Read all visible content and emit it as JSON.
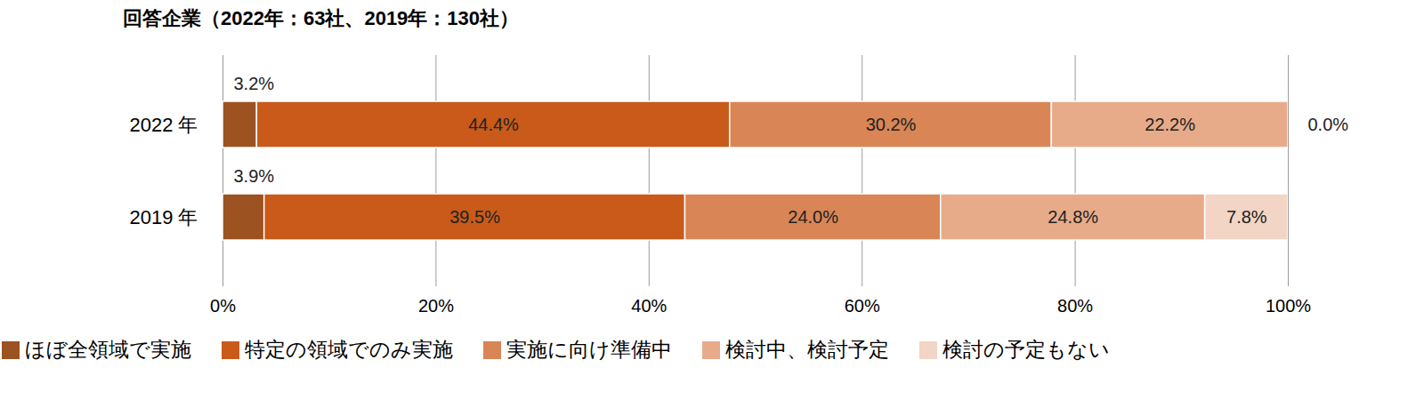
{
  "chart_data": {
    "type": "bar",
    "title": "回答企業（2022年：63社、2019年：130社）",
    "orientation": "horizontal",
    "stacked": true,
    "data_labels": true,
    "grid": true,
    "legend": "bottom",
    "categories": [
      "2022 年",
      "2019 年"
    ],
    "xlim": [
      0,
      100
    ],
    "xticks": [
      {
        "value": 0,
        "label": "0%"
      },
      {
        "value": 20,
        "label": "20%"
      },
      {
        "value": 40,
        "label": "40%"
      },
      {
        "value": 60,
        "label": "60%"
      },
      {
        "value": 80,
        "label": "80%"
      },
      {
        "value": 100,
        "label": "100%"
      }
    ],
    "series": [
      {
        "name": "ほぼ全領域で実施",
        "color": "#9c5221",
        "values": [
          3.2,
          3.9
        ],
        "value_labels": [
          "3.2%",
          "3.9%"
        ]
      },
      {
        "name": "特定の領域でのみ実施",
        "color": "#c95a1a",
        "values": [
          44.4,
          39.5
        ],
        "value_labels": [
          "44.4%",
          "39.5%"
        ]
      },
      {
        "name": "実施に向け準備中",
        "color": "#d98556",
        "values": [
          30.2,
          24.0
        ],
        "value_labels": [
          "30.2%",
          "24.0%"
        ]
      },
      {
        "name": "検討中、検討予定",
        "color": "#e8ab8a",
        "values": [
          22.2,
          24.8
        ],
        "value_labels": [
          "22.2%",
          "24.8%"
        ]
      },
      {
        "name": "検討の予定もない",
        "color": "#f2d5c5",
        "values": [
          0.0,
          7.8
        ],
        "value_labels": [
          "0.0%",
          "7.8%"
        ]
      }
    ]
  }
}
